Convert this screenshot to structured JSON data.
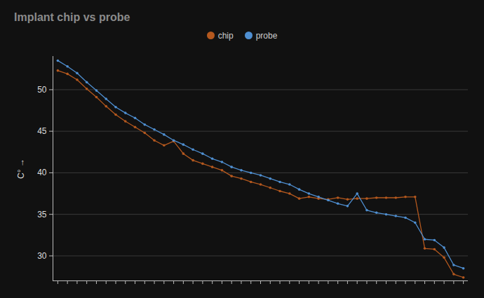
{
  "chart_data": {
    "type": "line",
    "title": "Implant chip vs probe",
    "y_label": "C°",
    "x": [
      0,
      1,
      2,
      3,
      4,
      5,
      6,
      7,
      8,
      9,
      10,
      11,
      12,
      13,
      14,
      15,
      16,
      17,
      18,
      19,
      20,
      21,
      22,
      23,
      24,
      25,
      26,
      27,
      28,
      29,
      30,
      31,
      32,
      33,
      34,
      35,
      36,
      37,
      38,
      39,
      40,
      41,
      42
    ],
    "series": [
      {
        "name": "chip",
        "color": "#b4581e",
        "marker": "circle",
        "values": [
          52.3,
          51.9,
          51.2,
          50.1,
          49.1,
          48.0,
          47.0,
          46.2,
          45.5,
          44.8,
          43.9,
          43.3,
          43.8,
          42.3,
          41.5,
          41.1,
          40.7,
          40.3,
          39.6,
          39.3,
          38.9,
          38.6,
          38.2,
          37.8,
          37.5,
          36.9,
          37.1,
          36.9,
          36.8,
          37.0,
          36.8,
          36.9,
          36.9,
          37.0,
          37.0,
          37.0,
          37.1,
          37.1,
          30.9,
          30.8,
          29.8,
          27.8,
          27.4
        ]
      },
      {
        "name": "probe",
        "color": "#4f8fd1",
        "marker": "circle",
        "values": [
          53.5,
          52.8,
          52.0,
          50.9,
          49.9,
          48.9,
          47.9,
          47.2,
          46.6,
          45.8,
          45.2,
          44.6,
          43.9,
          43.4,
          42.8,
          42.3,
          41.7,
          41.3,
          40.7,
          40.3,
          40.0,
          39.7,
          39.3,
          38.9,
          38.6,
          38.0,
          37.5,
          37.1,
          36.7,
          36.3,
          36.0,
          37.5,
          35.5,
          35.2,
          35.0,
          34.8,
          34.6,
          34.0,
          32.0,
          31.9,
          31.0,
          28.9,
          28.5
        ]
      }
    ],
    "xlim": [
      -0.5,
      42.5
    ],
    "xticks": [
      0,
      1,
      2,
      3,
      4,
      5,
      6,
      7,
      8,
      9,
      10,
      11,
      12,
      13,
      14,
      15,
      16,
      17,
      18,
      19,
      20,
      21,
      22,
      23,
      24,
      25,
      26,
      27,
      28,
      29,
      30,
      31,
      32,
      33,
      34,
      35,
      36,
      37,
      38,
      39,
      40,
      41,
      42
    ],
    "ylim": [
      27,
      54
    ],
    "yticks": [
      30,
      35,
      40,
      45,
      50
    ],
    "grid": true,
    "legend": "top",
    "tick_labels": "y"
  }
}
